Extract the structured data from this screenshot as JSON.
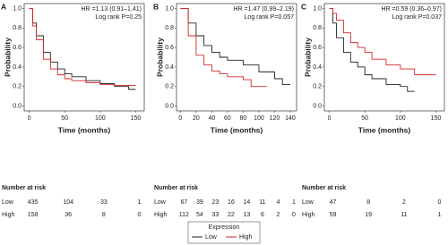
{
  "chart_data": [
    {
      "type": "line",
      "step": true,
      "panel": "A",
      "annotations": [
        "HR =1.13 (0.91–1.41)",
        "Log rank P=0.25"
      ],
      "xlabel": "Time (months)",
      "ylabel": "Probability",
      "xlim": [
        -7,
        162
      ],
      "xticks": [
        0,
        50,
        100,
        150
      ],
      "ylim": [
        -0.05,
        1.05
      ],
      "yticks": [
        {
          "value": 0,
          "label": "0.0"
        },
        0.2,
        0.4,
        0.6,
        0.8,
        {
          "value": 1,
          "label": "1.0"
        }
      ],
      "series": [
        {
          "name": "Low",
          "color": "#222222",
          "x": [
            0,
            5,
            10,
            20,
            30,
            40,
            50,
            60,
            80,
            100,
            120,
            140,
            150
          ],
          "values": [
            1,
            0.85,
            0.72,
            0.55,
            0.45,
            0.38,
            0.33,
            0.3,
            0.26,
            0.23,
            0.2,
            0.17,
            0.17
          ]
        },
        {
          "name": "High",
          "color": "#d62728",
          "x": [
            0,
            5,
            10,
            20,
            30,
            40,
            50,
            60,
            80,
            100,
            120,
            150
          ],
          "values": [
            1,
            0.82,
            0.68,
            0.48,
            0.38,
            0.32,
            0.28,
            0.26,
            0.24,
            0.22,
            0.21,
            0.21
          ]
        }
      ],
      "risk_table": {
        "title": "Number at risk",
        "times": [
          0,
          50,
          100,
          150
        ],
        "rows": [
          {
            "name": "Low",
            "values": [
              435,
              104,
              33,
              1
            ]
          },
          {
            "name": "High",
            "values": [
              158,
              36,
              8,
              0
            ]
          }
        ]
      }
    },
    {
      "type": "line",
      "step": true,
      "panel": "B",
      "annotations": [
        "HR =1.47 (0.99–2.19)",
        "Log rank P=0.057"
      ],
      "xlabel": "Time (months)",
      "ylabel": "Probability",
      "xlim": [
        -5,
        148
      ],
      "xticks": [
        0,
        20,
        40,
        60,
        80,
        100,
        120,
        140
      ],
      "ylim": [
        -0.05,
        1.05
      ],
      "yticks": [
        {
          "value": 0,
          "label": "0.0"
        },
        0.2,
        0.4,
        0.6,
        0.8,
        {
          "value": 1,
          "label": "1.0"
        }
      ],
      "series": [
        {
          "name": "Low",
          "color": "#222222",
          "x": [
            0,
            10,
            20,
            30,
            40,
            50,
            60,
            80,
            100,
            120,
            130,
            140
          ],
          "values": [
            1,
            0.85,
            0.72,
            0.62,
            0.55,
            0.5,
            0.47,
            0.42,
            0.35,
            0.28,
            0.22,
            0.22
          ]
        },
        {
          "name": "High",
          "color": "#d62728",
          "x": [
            0,
            10,
            20,
            30,
            40,
            50,
            60,
            80,
            90,
            110
          ],
          "values": [
            1,
            0.72,
            0.52,
            0.42,
            0.36,
            0.33,
            0.3,
            0.27,
            0.2,
            0.2
          ]
        }
      ],
      "risk_table": {
        "title": "Number at risk",
        "times": [
          0,
          20,
          40,
          60,
          80,
          100,
          120,
          140
        ],
        "rows": [
          {
            "name": "Low",
            "values": [
              67,
              39,
              23,
              16,
              14,
              11,
              4,
              1
            ]
          },
          {
            "name": "High",
            "values": [
              112,
              54,
              33,
              22,
              13,
              6,
              2,
              0
            ]
          }
        ]
      }
    },
    {
      "type": "line",
      "step": true,
      "panel": "C",
      "annotations": [
        "HR =0.59 (0.36–0.97)",
        "Log rank P=0.037"
      ],
      "xlabel": "Time (months)",
      "ylabel": "Probability",
      "xlim": [
        -7,
        162
      ],
      "xticks": [
        0,
        50,
        100,
        150
      ],
      "ylim": [
        -0.05,
        1.05
      ],
      "yticks": [
        {
          "value": 0,
          "label": "0.0"
        },
        0.2,
        0.4,
        0.6,
        0.8,
        {
          "value": 1,
          "label": "1.0"
        }
      ],
      "series": [
        {
          "name": "Low",
          "color": "#222222",
          "x": [
            0,
            5,
            10,
            20,
            30,
            40,
            50,
            60,
            80,
            100,
            110,
            120
          ],
          "values": [
            1,
            0.85,
            0.7,
            0.55,
            0.45,
            0.4,
            0.32,
            0.28,
            0.22,
            0.2,
            0.15,
            0.15
          ]
        },
        {
          "name": "High",
          "color": "#d62728",
          "x": [
            0,
            5,
            10,
            20,
            30,
            40,
            50,
            60,
            80,
            100,
            120,
            150
          ],
          "values": [
            1,
            0.95,
            0.88,
            0.75,
            0.65,
            0.6,
            0.55,
            0.48,
            0.42,
            0.38,
            0.32,
            0.32
          ]
        }
      ],
      "risk_table": {
        "title": "Number at risk",
        "times": [
          0,
          50,
          100,
          150
        ],
        "rows": [
          {
            "name": "Low",
            "values": [
              47,
              8,
              2,
              0
            ]
          },
          {
            "name": "High",
            "values": [
              59,
              19,
              11,
              1
            ]
          }
        ]
      }
    }
  ],
  "legend": {
    "title": "Expression"
  }
}
